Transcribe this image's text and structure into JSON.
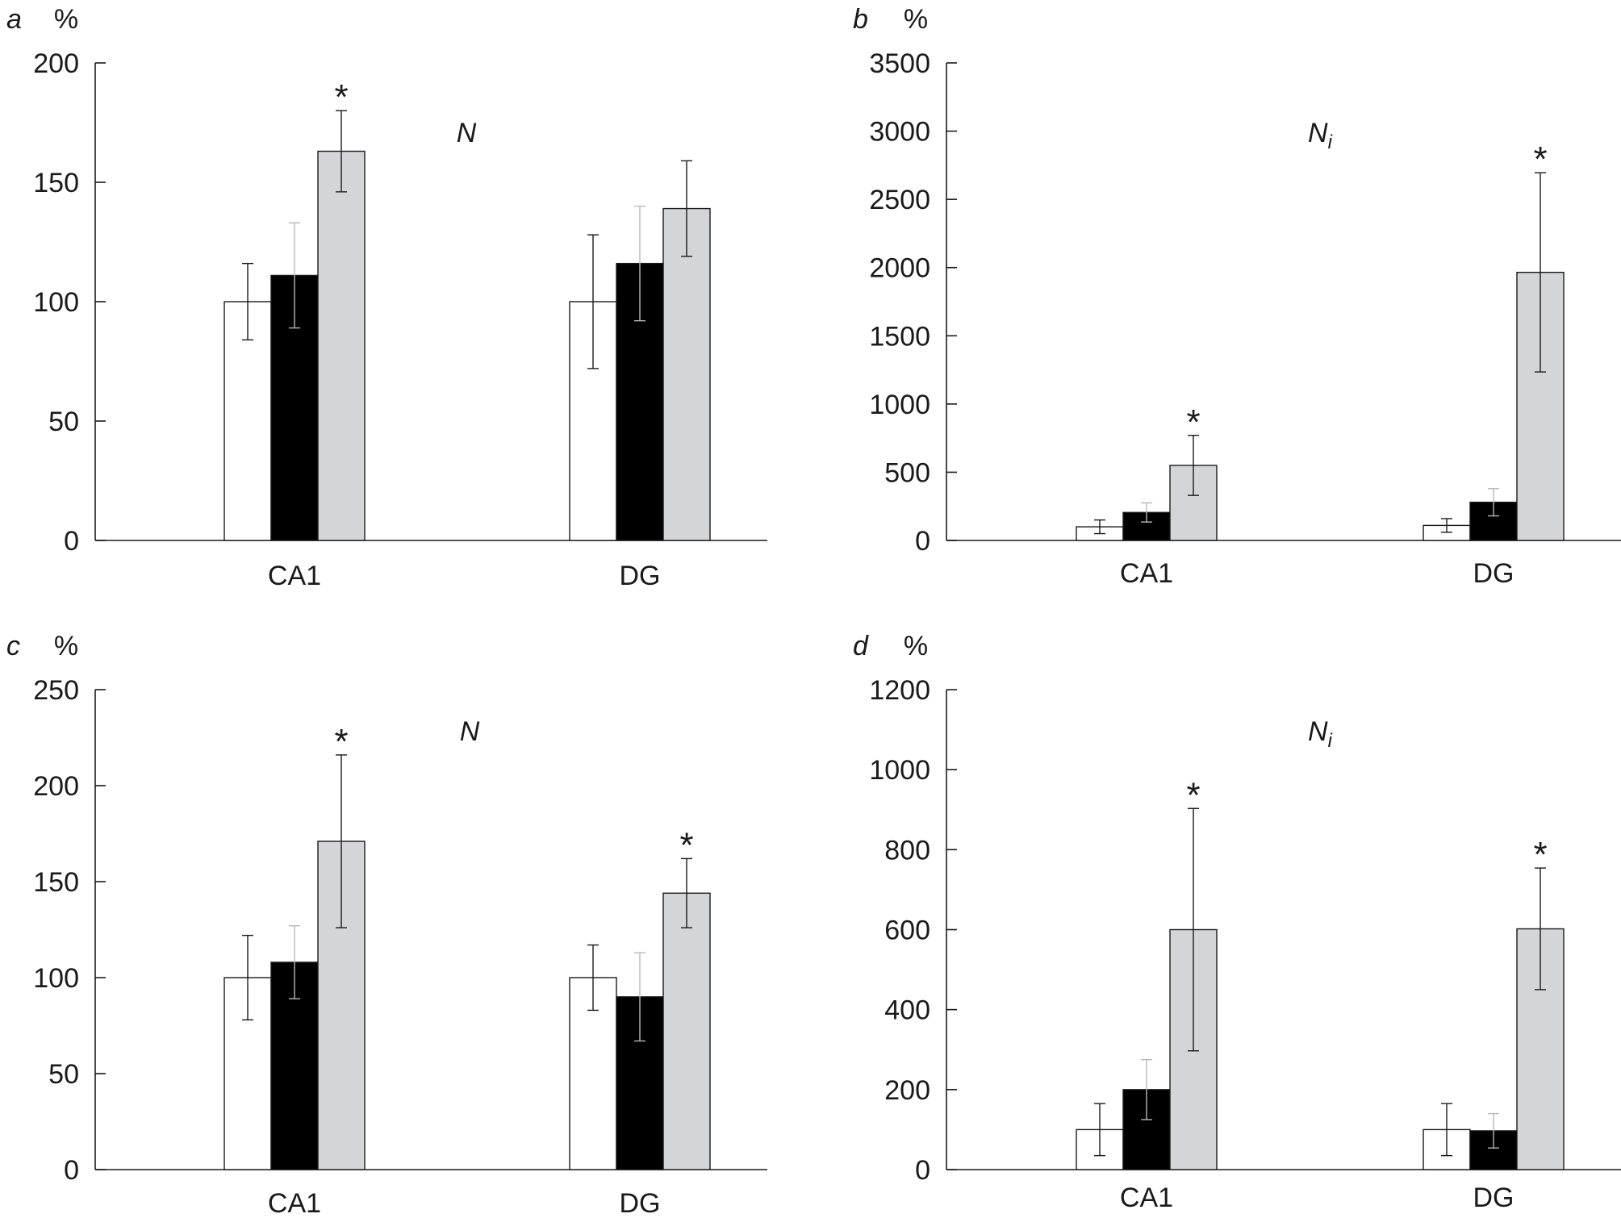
{
  "legend": {
    "visible": false
  },
  "chart_data": [
    {
      "type": "bar",
      "panel": "a",
      "unit": "%",
      "metric": {
        "base": "N",
        "subscript": ""
      },
      "categories": [
        "CA1",
        "DG"
      ],
      "series": [
        {
          "color": "#ffffff",
          "values": [
            100,
            100
          ],
          "errors": [
            16,
            28
          ]
        },
        {
          "color": "#000000",
          "values": [
            111,
            116
          ],
          "errors": [
            22,
            24
          ]
        },
        {
          "color": "#d4d5d8",
          "values": [
            163,
            139
          ],
          "errors": [
            17,
            20
          ]
        }
      ],
      "significance": [
        [
          "",
          "",
          "*"
        ],
        [
          "",
          "",
          ""
        ]
      ],
      "ylim": [
        0,
        200
      ],
      "yticks": [
        0,
        50,
        100,
        150,
        200
      ],
      "ytick_labels": [
        "0",
        "50",
        "100",
        "150",
        "200"
      ]
    },
    {
      "type": "bar",
      "panel": "b",
      "unit": "%",
      "metric": {
        "base": "N",
        "subscript": "i"
      },
      "categories": [
        "CA1",
        "DG"
      ],
      "series": [
        {
          "color": "#ffffff",
          "values": [
            100,
            110
          ],
          "errors": [
            50,
            50
          ]
        },
        {
          "color": "#000000",
          "values": [
            205,
            280
          ],
          "errors": [
            70,
            100
          ]
        },
        {
          "color": "#d4d5d8",
          "values": [
            550,
            1965
          ],
          "errors": [
            220,
            730
          ]
        }
      ],
      "significance": [
        [
          "",
          "",
          "*"
        ],
        [
          "",
          "",
          "*"
        ]
      ],
      "ylim": [
        0,
        3500
      ],
      "yticks": [
        0,
        500,
        1000,
        1500,
        2000,
        2500,
        3000,
        3500
      ],
      "ytick_labels": [
        "0",
        "500",
        "1000",
        "1500",
        "2000",
        "2500",
        "3000",
        "3500"
      ]
    },
    {
      "type": "bar",
      "panel": "c",
      "unit": "%",
      "metric": {
        "base": "N",
        "subscript": ""
      },
      "categories": [
        "CA1",
        "DG"
      ],
      "series": [
        {
          "color": "#ffffff",
          "values": [
            100,
            100
          ],
          "errors": [
            22,
            17
          ]
        },
        {
          "color": "#000000",
          "values": [
            108,
            90
          ],
          "errors": [
            19,
            23
          ]
        },
        {
          "color": "#d4d5d8",
          "values": [
            171,
            144
          ],
          "errors": [
            45,
            18
          ]
        }
      ],
      "significance": [
        [
          "",
          "",
          "*"
        ],
        [
          "",
          "",
          "*"
        ]
      ],
      "ylim": [
        0,
        250
      ],
      "yticks": [
        0,
        50,
        100,
        150,
        200,
        250
      ],
      "ytick_labels": [
        "0",
        "50",
        "100",
        "150",
        "200",
        "250"
      ]
    },
    {
      "type": "bar",
      "panel": "d",
      "unit": "%",
      "metric": {
        "base": "N",
        "subscript": "i"
      },
      "categories": [
        "CA1",
        "DG"
      ],
      "series": [
        {
          "color": "#ffffff",
          "values": [
            100,
            100
          ],
          "errors": [
            65,
            65
          ]
        },
        {
          "color": "#000000",
          "values": [
            200,
            97
          ],
          "errors": [
            75,
            43
          ]
        },
        {
          "color": "#d4d5d8",
          "values": [
            600,
            602
          ],
          "errors": [
            303,
            152
          ]
        }
      ],
      "significance": [
        [
          "",
          "",
          "*"
        ],
        [
          "",
          "",
          "*"
        ]
      ],
      "ylim": [
        0,
        1200
      ],
      "yticks": [
        0,
        200,
        400,
        600,
        800,
        1000,
        1200
      ],
      "ytick_labels": [
        "0",
        "200",
        "400",
        "600",
        "800",
        "1000",
        "1200"
      ]
    }
  ]
}
